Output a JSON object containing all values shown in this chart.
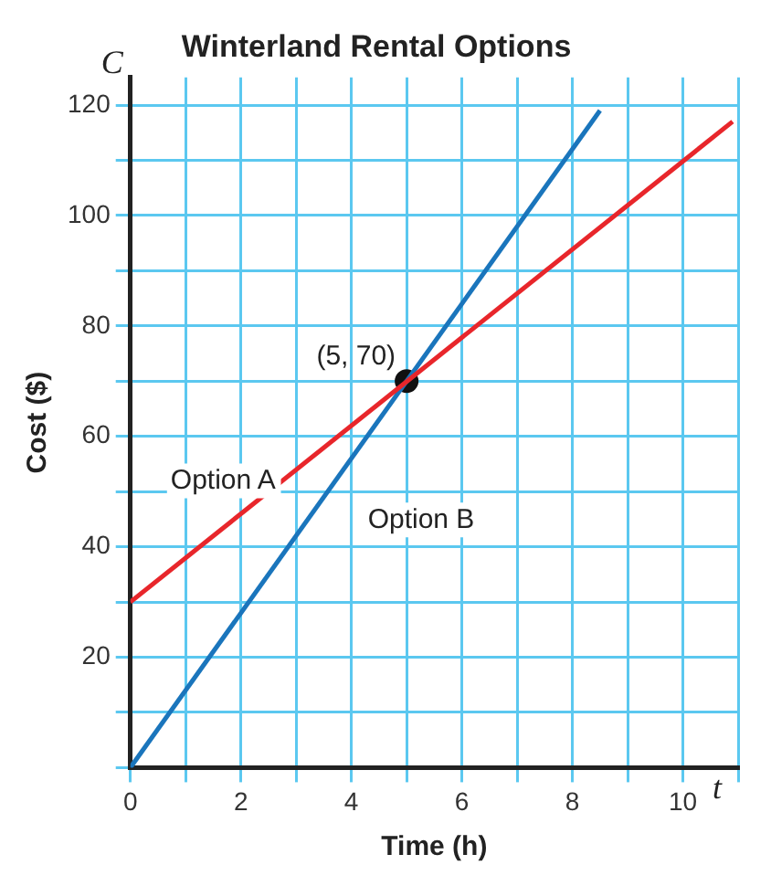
{
  "chart_data": {
    "type": "line",
    "title": "Winterland Rental Options",
    "xlabel": "Time (h)",
    "ylabel": "Cost ($)",
    "xlim": [
      0,
      11
    ],
    "ylim": [
      0,
      125
    ],
    "xticks": [
      {
        "value": 0,
        "label": "0"
      },
      {
        "value": 1,
        "label": null
      },
      2,
      {
        "value": 3,
        "label": null
      },
      4,
      {
        "value": 5,
        "label": null
      },
      6,
      {
        "value": 7,
        "label": null
      },
      8,
      {
        "value": 9,
        "label": null
      },
      10,
      {
        "value": 11,
        "label": null
      }
    ],
    "yticks": [
      {
        "value": 0,
        "label": null
      },
      {
        "value": 10,
        "label": null
      },
      20,
      {
        "value": 30,
        "label": null
      },
      40,
      {
        "value": 50,
        "label": null
      },
      60,
      {
        "value": 70,
        "label": null
      },
      80,
      {
        "value": 90,
        "label": null
      },
      100,
      {
        "value": 110,
        "label": null
      },
      120
    ],
    "grid": true,
    "legend": false,
    "marker": "none",
    "line_style": "solid",
    "series": [
      {
        "name": "Option A",
        "color": "#e8262b",
        "x": [
          0,
          10.9
        ],
        "values": [
          30,
          117
        ]
      },
      {
        "name": "Option B",
        "color": "#1a75bc",
        "x": [
          0,
          8.5
        ],
        "values": [
          0,
          119
        ]
      },
      {
        "type": "scatter",
        "color": "#111111",
        "marker": "circle",
        "x": [
          5
        ],
        "values": [
          70
        ]
      }
    ],
    "annotations": [
      {
        "text": "(5, 70)",
        "x": 5,
        "y": 70
      },
      "C",
      "t"
    ]
  }
}
